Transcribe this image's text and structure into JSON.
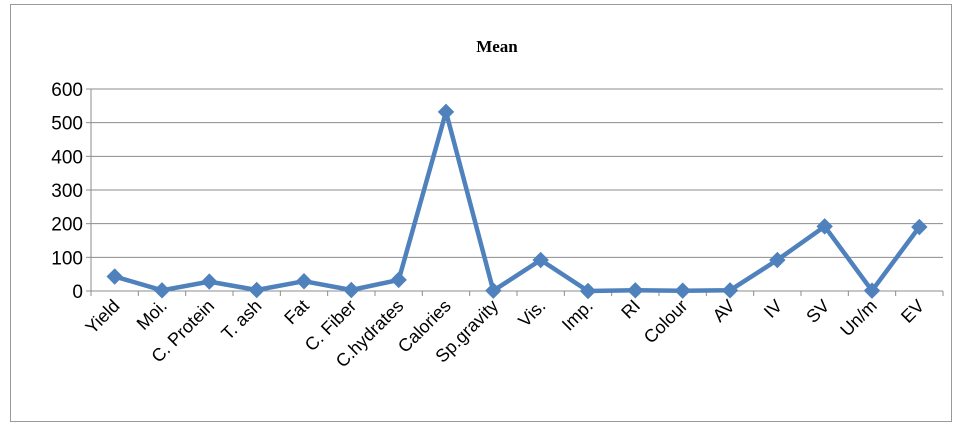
{
  "chart_data": {
    "type": "line",
    "title": "Mean",
    "xlabel": "",
    "ylabel": "",
    "ylim": [
      0,
      600
    ],
    "yticks": [
      0,
      100,
      200,
      300,
      400,
      500,
      600
    ],
    "grid": true,
    "legend": "none",
    "color": "#4f81bd",
    "categories": [
      "Yield",
      "Moi.",
      "C. Protein",
      "T. ash",
      "Fat",
      "C. Fiber",
      "C.hydrates",
      "Calories",
      "Sp.gravity",
      "Vis.",
      "Imp.",
      "RI",
      "Colour",
      "AV",
      "IV",
      "SV",
      "Un/m",
      "EV"
    ],
    "values": [
      43,
      2,
      28,
      3,
      29,
      3,
      33,
      532,
      1,
      92,
      0,
      2,
      1,
      2,
      92,
      192,
      1,
      190
    ]
  }
}
